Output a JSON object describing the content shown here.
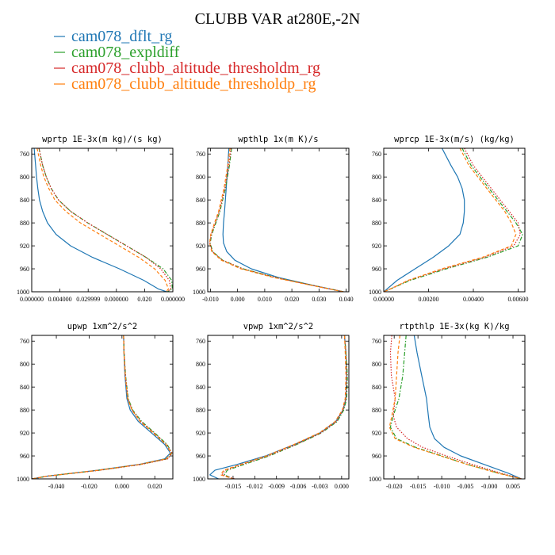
{
  "figure": {
    "title": "CLUBB VAR at280E,-2N",
    "legend": [
      {
        "label": "cam078_dflt_rg",
        "color": "#1f77b4",
        "dash": "solid"
      },
      {
        "label": "cam078_expldiff",
        "color": "#2ca02c",
        "dash": "dashdot"
      },
      {
        "label": "cam078_clubb_altitude_thresholdm_rg",
        "color": "#d62728",
        "dash": "dot"
      },
      {
        "label": "cam078_clubb_altitude_thresholdp_rg",
        "color": "#ff7f0e",
        "dash": "dash"
      }
    ]
  },
  "chart_data": [
    {
      "type": "line",
      "title": "wprtp  1E-3x(m kg)/(s kg)",
      "xlim": [
        0.0,
        0.058
      ],
      "ylim": [
        1000,
        750
      ],
      "x_tick_labels": [
        "0.000000",
        "0.004000",
        "0.029999",
        "0.000000",
        "0.020",
        "0.000000"
      ],
      "y_ticks": [
        760,
        800,
        840,
        880,
        920,
        960,
        1000
      ],
      "y": [
        750,
        760,
        780,
        800,
        820,
        840,
        860,
        880,
        900,
        920,
        940,
        960,
        980,
        995,
        1000
      ],
      "series": [
        {
          "name": "cam078_dflt_rg",
          "x": [
            0.001,
            0.0012,
            0.0016,
            0.002,
            0.0025,
            0.0032,
            0.0045,
            0.0065,
            0.01,
            0.016,
            0.025,
            0.036,
            0.046,
            0.052,
            0.0555
          ]
        },
        {
          "name": "cam078_expldiff",
          "x": [
            0.003,
            0.0035,
            0.0045,
            0.006,
            0.008,
            0.011,
            0.016,
            0.023,
            0.031,
            0.039,
            0.047,
            0.054,
            0.0575,
            0.0578,
            0.0558
          ]
        },
        {
          "name": "cam078_clubb_altitude_thresholdm_rg",
          "x": [
            0.003,
            0.0035,
            0.0045,
            0.006,
            0.008,
            0.011,
            0.016,
            0.023,
            0.031,
            0.039,
            0.047,
            0.053,
            0.0565,
            0.0572,
            0.0556
          ]
        },
        {
          "name": "cam078_clubb_altitude_thresholdp_rg",
          "x": [
            0.0022,
            0.0027,
            0.0037,
            0.005,
            0.007,
            0.0095,
            0.014,
            0.02,
            0.028,
            0.036,
            0.044,
            0.0505,
            0.0548,
            0.0562,
            0.0552
          ]
        }
      ]
    },
    {
      "type": "line",
      "title": "wpthlp  1x(m K)/s",
      "xlim": [
        -0.011,
        0.041
      ],
      "ylim": [
        1000,
        750
      ],
      "x_ticks": [
        -0.01,
        0.0,
        0.01,
        0.02,
        0.03,
        0.04
      ],
      "x_tick_labels": [
        "-0.010",
        "0.000",
        "0.010",
        "0.020",
        "0.030",
        "0.040"
      ],
      "y_ticks": [
        760,
        800,
        840,
        880,
        920,
        960,
        1000
      ],
      "y": [
        750,
        780,
        820,
        860,
        880,
        900,
        915,
        930,
        945,
        960,
        975,
        990,
        1000
      ],
      "series": [
        {
          "name": "cam078_dflt_rg",
          "x": [
            -0.0032,
            -0.0036,
            -0.0042,
            -0.0048,
            -0.0052,
            -0.0054,
            -0.0052,
            -0.004,
            -0.001,
            0.005,
            0.015,
            0.029,
            0.039
          ]
        },
        {
          "name": "cam078_expldiff",
          "x": [
            -0.0022,
            -0.003,
            -0.0045,
            -0.0065,
            -0.008,
            -0.0095,
            -0.0101,
            -0.0092,
            -0.0055,
            0.002,
            0.014,
            0.029,
            0.039
          ]
        },
        {
          "name": "cam078_clubb_altitude_thresholdm_rg",
          "x": [
            -0.0024,
            -0.0032,
            -0.0047,
            -0.0067,
            -0.0082,
            -0.0097,
            -0.0102,
            -0.0093,
            -0.0056,
            0.0018,
            0.0138,
            0.0288,
            0.039
          ]
        },
        {
          "name": "cam078_clubb_altitude_thresholdp_rg",
          "x": [
            -0.0028,
            -0.0036,
            -0.005,
            -0.007,
            -0.0085,
            -0.0099,
            -0.0103,
            -0.0095,
            -0.006,
            0.0012,
            0.0132,
            0.0285,
            0.039
          ]
        }
      ]
    },
    {
      "type": "line",
      "title": "wprcp  1E-3x(m/s) (kg/kg)",
      "xlim": [
        0.0,
        0.0063
      ],
      "ylim": [
        1000,
        750
      ],
      "x_ticks": [
        0.0,
        0.002,
        0.004,
        0.006
      ],
      "x_tick_labels": [
        "0.00000",
        "0.00200",
        "0.00400",
        "0.00600"
      ],
      "y_ticks": [
        760,
        800,
        840,
        880,
        920,
        960,
        1000
      ],
      "y": [
        750,
        780,
        800,
        820,
        840,
        860,
        880,
        900,
        920,
        940,
        960,
        980,
        995,
        1000
      ],
      "series": [
        {
          "name": "cam078_dflt_rg",
          "x": [
            0.0026,
            0.003,
            0.0033,
            0.0035,
            0.0036,
            0.0036,
            0.00355,
            0.0034,
            0.0029,
            0.0022,
            0.0014,
            0.0006,
            0.00015,
            0.0
          ]
        },
        {
          "name": "cam078_expldiff",
          "x": [
            0.0035,
            0.0039,
            0.0043,
            0.0047,
            0.0051,
            0.0055,
            0.0059,
            0.0062,
            0.006,
            0.0046,
            0.0028,
            0.0012,
            0.0003,
            0.0
          ]
        },
        {
          "name": "cam078_clubb_altitude_thresholdm_rg",
          "x": [
            0.0036,
            0.004,
            0.0044,
            0.0048,
            0.0052,
            0.0056,
            0.006,
            0.0061,
            0.0058,
            0.0045,
            0.0027,
            0.0011,
            0.0003,
            0.0
          ]
        },
        {
          "name": "cam078_clubb_altitude_thresholdp_rg",
          "x": [
            0.0034,
            0.0038,
            0.0042,
            0.0046,
            0.005,
            0.0054,
            0.0057,
            0.0059,
            0.0057,
            0.0044,
            0.0026,
            0.0011,
            0.0003,
            0.0
          ]
        }
      ]
    },
    {
      "type": "line",
      "title": "upwp  1xm^2/s^2",
      "xlim": [
        -0.055,
        0.031
      ],
      "ylim": [
        1000,
        750
      ],
      "x_ticks": [
        -0.04,
        -0.02,
        0.0,
        0.02
      ],
      "x_tick_labels": [
        "-0.040",
        "-0.020",
        "0.000",
        "0.020"
      ],
      "y_ticks": [
        760,
        800,
        840,
        880,
        920,
        960,
        1000
      ],
      "y": [
        750,
        780,
        820,
        860,
        880,
        900,
        920,
        940,
        955,
        965,
        975,
        985,
        995,
        1000
      ],
      "series": [
        {
          "name": "cam078_dflt_rg",
          "x": [
            0.001,
            0.0012,
            0.0018,
            0.003,
            0.005,
            0.01,
            0.018,
            0.026,
            0.0295,
            0.026,
            0.01,
            -0.015,
            -0.045,
            -0.055
          ]
        },
        {
          "name": "cam078_expldiff",
          "x": [
            0.001,
            0.0013,
            0.0022,
            0.0038,
            0.0065,
            0.012,
            0.02,
            0.0275,
            0.0305,
            0.0275,
            0.011,
            -0.014,
            -0.045,
            -0.055
          ]
        },
        {
          "name": "cam078_clubb_altitude_thresholdm_rg",
          "x": [
            0.001,
            0.0013,
            0.0021,
            0.0036,
            0.0062,
            0.0115,
            0.0195,
            0.027,
            0.0305,
            0.028,
            0.0115,
            -0.0135,
            -0.045,
            -0.055
          ]
        },
        {
          "name": "cam078_clubb_altitude_thresholdp_rg",
          "x": [
            0.001,
            0.0012,
            0.002,
            0.0034,
            0.006,
            0.011,
            0.019,
            0.0268,
            0.03,
            0.027,
            0.0105,
            -0.0145,
            -0.045,
            -0.055
          ]
        }
      ]
    },
    {
      "type": "line",
      "title": "vpwp  1xm^2/s^2",
      "xlim": [
        -0.0185,
        0.001
      ],
      "ylim": [
        1000,
        750
      ],
      "x_ticks": [
        -0.015,
        -0.012,
        -0.009,
        -0.006,
        -0.003,
        0.0
      ],
      "x_tick_labels": [
        "-0.015",
        "-0.012",
        "-0.009",
        "-0.006",
        "-0.003",
        "0.000"
      ],
      "y_ticks": [
        760,
        800,
        840,
        880,
        920,
        960,
        1000
      ],
      "y": [
        750,
        780,
        820,
        860,
        880,
        900,
        920,
        940,
        960,
        975,
        985,
        993,
        1000
      ],
      "series": [
        {
          "name": "cam078_dflt_rg",
          "x": [
            0.0004,
            0.0006,
            0.0007,
            0.0006,
            0.0002,
            -0.0008,
            -0.003,
            -0.0065,
            -0.0105,
            -0.0145,
            -0.0175,
            -0.0182,
            -0.017
          ]
        },
        {
          "name": "cam078_expldiff",
          "x": [
            0.0004,
            0.0006,
            0.0008,
            0.0007,
            0.0003,
            -0.0006,
            -0.0028,
            -0.0062,
            -0.01,
            -0.0135,
            -0.0158,
            -0.0162,
            -0.015
          ]
        },
        {
          "name": "cam078_clubb_altitude_thresholdm_rg",
          "x": [
            0.0004,
            0.0006,
            0.0007,
            0.0006,
            0.0002,
            -0.0007,
            -0.0029,
            -0.0063,
            -0.0102,
            -0.0138,
            -0.0161,
            -0.0165,
            -0.0148
          ]
        },
        {
          "name": "cam078_clubb_altitude_thresholdp_rg",
          "x": [
            0.0004,
            0.0005,
            0.0006,
            0.0005,
            0.0001,
            -0.0009,
            -0.0031,
            -0.0066,
            -0.0104,
            -0.014,
            -0.0163,
            -0.0167,
            -0.015
          ]
        }
      ]
    },
    {
      "type": "line",
      "title": "rtpthlp  1E-3x(kg K)/kg",
      "xlim": [
        -0.0222,
        0.0075
      ],
      "ylim": [
        1000,
        750
      ],
      "x_ticks": [
        -0.02,
        -0.015,
        -0.01,
        -0.005,
        0.0,
        0.005
      ],
      "x_tick_labels": [
        "-0.020",
        "-0.015",
        "-0.010",
        "-0.005",
        "-0.000",
        "0.005"
      ],
      "y_ticks": [
        760,
        800,
        840,
        880,
        920,
        960,
        1000
      ],
      "y": [
        750,
        780,
        820,
        860,
        890,
        910,
        930,
        945,
        960,
        975,
        990,
        1000
      ],
      "series": [
        {
          "name": "cam078_dflt_rg",
          "x": [
            -0.0158,
            -0.0152,
            -0.0142,
            -0.0132,
            -0.0128,
            -0.0125,
            -0.0115,
            -0.0095,
            -0.006,
            -0.001,
            0.004,
            0.0068
          ]
        },
        {
          "name": "cam078_expldiff",
          "x": [
            -0.0175,
            -0.0178,
            -0.0182,
            -0.019,
            -0.0202,
            -0.0208,
            -0.0195,
            -0.0155,
            -0.01,
            -0.0045,
            0.002,
            0.0068
          ]
        },
        {
          "name": "cam078_clubb_altitude_thresholdm_rg",
          "x": [
            -0.0205,
            -0.0208,
            -0.0206,
            -0.0198,
            -0.0202,
            -0.0195,
            -0.0172,
            -0.014,
            -0.009,
            -0.0035,
            0.0025,
            0.0068
          ]
        },
        {
          "name": "cam078_clubb_altitude_thresholdp_rg",
          "x": [
            -0.0188,
            -0.0192,
            -0.0195,
            -0.0198,
            -0.0205,
            -0.021,
            -0.0198,
            -0.0158,
            -0.0102,
            -0.0046,
            0.0018,
            0.0068
          ]
        }
      ]
    }
  ]
}
